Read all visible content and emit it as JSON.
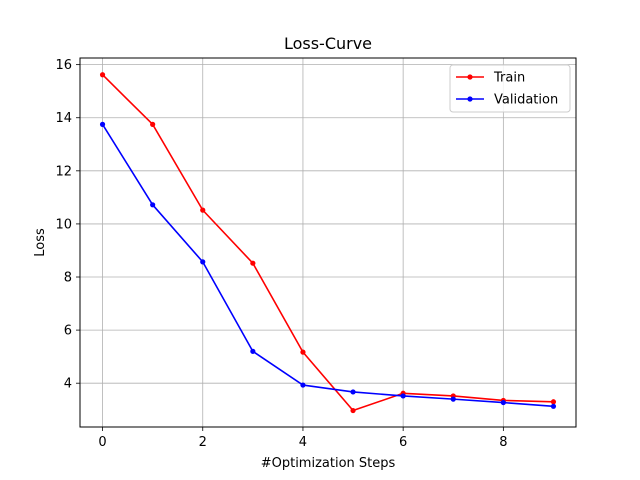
{
  "chart_data": {
    "type": "line",
    "title": "Loss-Curve",
    "xlabel": "#Optimization Steps",
    "ylabel": "Loss",
    "xlim": [
      -0.45,
      9.45
    ],
    "ylim": [
      2.35,
      16.25
    ],
    "xticks": [
      0,
      2,
      4,
      6,
      8
    ],
    "yticks": [
      4,
      6,
      8,
      10,
      12,
      14,
      16
    ],
    "grid": true,
    "legend_position": "top-right",
    "x": [
      0,
      1,
      2,
      3,
      4,
      5,
      6,
      7,
      8,
      9
    ],
    "series": [
      {
        "name": "Train",
        "color": "#ff0000",
        "marker": "dot",
        "values": [
          15.62,
          13.75,
          10.52,
          8.52,
          5.17,
          2.97,
          3.62,
          3.52,
          3.35,
          3.3
        ]
      },
      {
        "name": "Validation",
        "color": "#0000ff",
        "marker": "dot",
        "values": [
          13.75,
          10.72,
          8.57,
          5.2,
          3.93,
          3.67,
          3.52,
          3.4,
          3.27,
          3.13
        ]
      }
    ]
  }
}
